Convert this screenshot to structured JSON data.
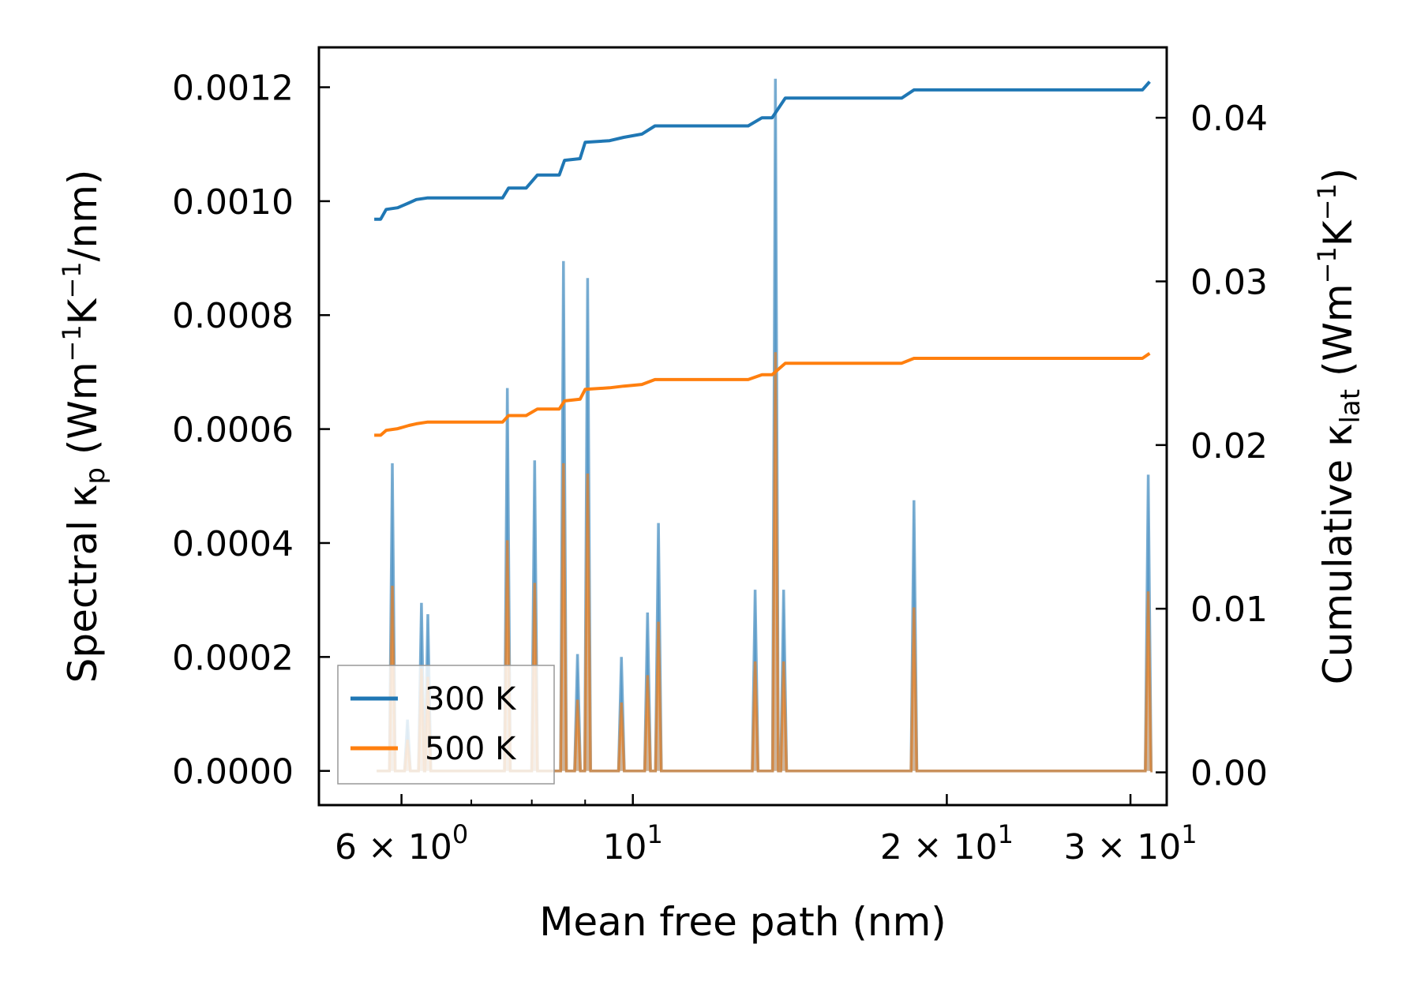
{
  "chart_data": {
    "type": "line",
    "xlabel": "Mean free path (nm)",
    "x_scale": "log",
    "xlim": [
      5.0,
      32.5
    ],
    "x_ticks": [
      {
        "value": 6,
        "base": "6 × 10",
        "exp": "0"
      },
      {
        "value": 10,
        "base": "10",
        "exp": "1"
      },
      {
        "value": 20,
        "base": "2 × 10",
        "exp": "1"
      },
      {
        "value": 30,
        "base": "3 × 10",
        "exp": "1"
      }
    ],
    "y_left": {
      "label_pre": "Spectral κ",
      "label_sub": "p",
      "label_mid": " (Wm",
      "label_sup1": "−1",
      "label_k": "K",
      "label_sup2": "−1",
      "label_post": "/nm)",
      "ylim": [
        -6e-05,
        0.00127
      ],
      "ticks": [
        "0.0000",
        "0.0002",
        "0.0004",
        "0.0006",
        "0.0008",
        "0.0010",
        "0.0012"
      ]
    },
    "y_right": {
      "label_pre": "Cumulative κ",
      "label_sub": "lat",
      "label_mid": " (Wm",
      "label_sup1": "−1",
      "label_k": "K",
      "label_sup2": "−1",
      "label_post": ")",
      "ylim": [
        -0.002,
        0.0443
      ],
      "ticks": [
        "0.00",
        "0.01",
        "0.02",
        "0.03",
        "0.04"
      ]
    },
    "legend": {
      "location": "lower-left",
      "entries": [
        "300 K",
        "500 K"
      ]
    },
    "colors": {
      "300 K": "#1f77b4",
      "500 K": "#ff7f0e"
    },
    "spectral": {
      "x": [
        5.88,
        6.08,
        6.27,
        6.36,
        7.58,
        8.05,
        8.58,
        8.85,
        9.05,
        9.75,
        10.33,
        10.58,
        13.1,
        13.7,
        13.95,
        18.6,
        31.2
      ],
      "300 K": [
        0.00054,
        9e-05,
        0.000295,
        0.000275,
        0.000672,
        0.000545,
        0.000895,
        0.000205,
        0.000865,
        0.0002,
        0.000278,
        0.000435,
        0.000318,
        0.001215,
        0.000318,
        0.000475,
        0.00052
      ],
      "500 K": [
        0.000325,
        5.5e-05,
        0.00018,
        0.000165,
        0.000405,
        0.00033,
        0.00054,
        0.000125,
        0.000522,
        0.00012,
        0.000168,
        0.000262,
        0.000192,
        0.000735,
        0.000192,
        0.000287,
        0.000315
      ]
    },
    "cumulative": {
      "300 K": {
        "x": [
          5.65,
          5.73,
          5.8,
          5.95,
          6.1,
          6.2,
          6.35,
          7.5,
          7.6,
          7.9,
          8.1,
          8.5,
          8.6,
          8.9,
          9.0,
          9.5,
          9.8,
          10.2,
          10.5,
          12.9,
          13.3,
          13.6,
          14.0,
          18.1,
          18.6,
          30.8,
          31.3
        ],
        "y": [
          0.0338,
          0.0338,
          0.0344,
          0.0345,
          0.0348,
          0.035,
          0.0351,
          0.0351,
          0.0357,
          0.0357,
          0.0365,
          0.0365,
          0.0374,
          0.0375,
          0.0385,
          0.0386,
          0.0388,
          0.039,
          0.0395,
          0.0395,
          0.04,
          0.04,
          0.0412,
          0.0412,
          0.0417,
          0.0417,
          0.0422
        ]
      },
      "500 K": {
        "x": [
          5.65,
          5.73,
          5.8,
          5.95,
          6.1,
          6.2,
          6.35,
          7.5,
          7.6,
          7.9,
          8.1,
          8.5,
          8.6,
          8.9,
          9.0,
          9.5,
          9.8,
          10.2,
          10.5,
          12.9,
          13.3,
          13.6,
          14.0,
          18.1,
          18.6,
          30.8,
          31.3
        ],
        "y": [
          0.0206,
          0.0206,
          0.0209,
          0.021,
          0.0212,
          0.0213,
          0.0214,
          0.0214,
          0.0218,
          0.0218,
          0.0222,
          0.0222,
          0.0227,
          0.0228,
          0.0234,
          0.0235,
          0.0236,
          0.0237,
          0.024,
          0.024,
          0.0243,
          0.0243,
          0.025,
          0.025,
          0.0253,
          0.0253,
          0.0256
        ]
      }
    }
  }
}
